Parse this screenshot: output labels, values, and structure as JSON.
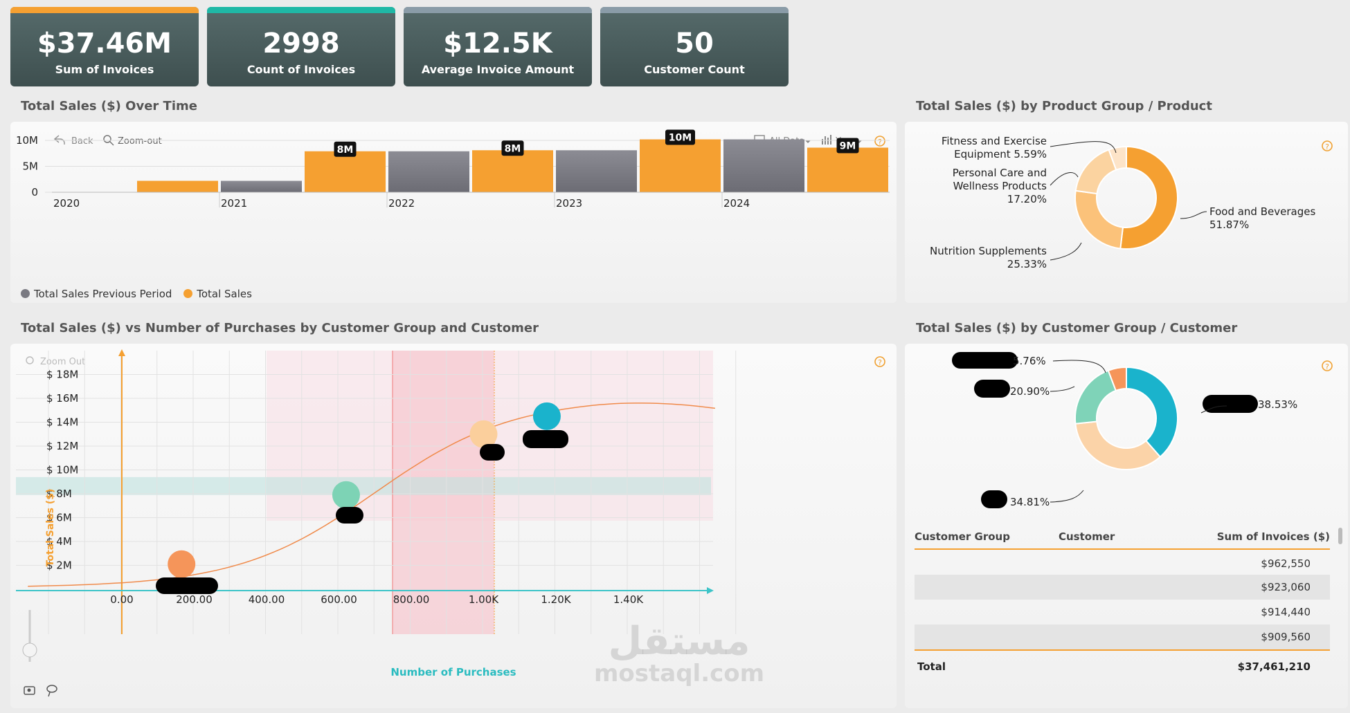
{
  "kpis": [
    {
      "value": "$37.46M",
      "label": "Sum of Invoices",
      "accent": "#f5a031"
    },
    {
      "value": "2998",
      "label": "Count of Invoices",
      "accent": "#1fb8a6"
    },
    {
      "value": "$12.5K",
      "label": "Average Invoice Amount",
      "accent": "#8a9ca8"
    },
    {
      "value": "50",
      "label": "Customer Count",
      "accent": "#8a9ca8"
    }
  ],
  "sales_over_time": {
    "title": "Total Sales ($) Over Time",
    "toolbar": {
      "back": "Back",
      "zoom_out": "Zoom-out",
      "all_data": "All Data",
      "year": "Year"
    },
    "legend": [
      "Total Sales Previous Period",
      "Total Sales"
    ]
  },
  "product_donut": {
    "title": "Total Sales ($) by Product Group / Product",
    "labels": {
      "fitness_1": "Fitness and Exercise",
      "fitness_2": "Equipment 5.59%",
      "personal_1": "Personal Care and",
      "personal_2": "Wellness Products",
      "personal_3": "17.20%",
      "nutrition_1": "Nutrition Supplements",
      "nutrition_2": "25.33%",
      "food_1": "Food and Beverages",
      "food_2": "51.87%"
    }
  },
  "scatter": {
    "title": "Total Sales ($) vs Number of Purchases by Customer Group and Customer",
    "zoom_out": "Zoom Out",
    "xlabel": "Number of Purchases",
    "ylabel": "Total Sales ($)"
  },
  "customer_donut": {
    "title": "Total Sales ($) by Customer Group / Customer",
    "labels": {
      "a": "5.76%",
      "b": "20.90%",
      "c": "38.53%",
      "d": "34.81%"
    }
  },
  "table": {
    "headers": [
      "Customer Group",
      "Customer",
      "Sum of Invoices ($)"
    ],
    "rows": [
      "$962,550",
      "$923,060",
      "$914,440",
      "$909,560"
    ],
    "total_label": "Total",
    "total_value": "$37,461,210"
  },
  "watermark": {
    "ar": "مستقل",
    "en": "mostaql.com"
  },
  "chart_data": [
    {
      "type": "bar",
      "title": "Total Sales ($) Over Time",
      "categories": [
        "2020",
        "2020b",
        "2021",
        "2021b",
        "2022",
        "2022b",
        "2023",
        "2023b",
        "2024",
        "2024b"
      ],
      "series": [
        {
          "name": "Total Sales Previous Period",
          "values": [
            0,
            0,
            2.2,
            0,
            7.9,
            0,
            8.1,
            0,
            10.2,
            0
          ]
        },
        {
          "name": "Total Sales",
          "values": [
            0,
            2.2,
            0,
            7.9,
            0,
            8.1,
            0,
            10.2,
            0,
            8.6
          ]
        }
      ],
      "data_labels": [
        "8M",
        "8M",
        "10M",
        "9M"
      ],
      "ylim": [
        0,
        12
      ],
      "y_ticks": [
        "0",
        "5M",
        "10M"
      ],
      "x_ticks": [
        "2020",
        "2021",
        "2022",
        "2023",
        "2024"
      ]
    },
    {
      "type": "pie",
      "title": "Total Sales ($) by Product Group / Product",
      "labels": [
        "Food and Beverages",
        "Nutrition Supplements",
        "Personal Care and Wellness Products",
        "Fitness and Exercise Equipment"
      ],
      "values": [
        51.87,
        25.33,
        17.2,
        5.59
      ]
    },
    {
      "type": "scatter",
      "title": "Total Sales ($) vs Number of Purchases by Customer Group and Customer",
      "xlabel": "Number of Purchases",
      "ylabel": "Total Sales ($)",
      "x_ticks": [
        "0.00",
        "200.00",
        "400.00",
        "600.00",
        "800.00",
        "1.00K",
        "1.20K",
        "1.40K"
      ],
      "y_ticks": [
        "$ 2M",
        "$ 4M",
        "$ 6M",
        "$ 8M",
        "$ 10M",
        "$ 12M",
        "$ 14M",
        "$ 16M",
        "$ 18M"
      ],
      "points": [
        {
          "x": 165,
          "y": 2.1,
          "color": "#f5955a"
        },
        {
          "x": 620,
          "y": 7.9,
          "color": "#7dd3b5"
        },
        {
          "x": 1000,
          "y": 13.0,
          "color": "#fbcf9c"
        },
        {
          "x": 1175,
          "y": 14.5,
          "color": "#1ab3cc"
        }
      ]
    },
    {
      "type": "pie",
      "title": "Total Sales ($) by Customer Group / Customer",
      "values": [
        38.53,
        34.81,
        20.9,
        5.76
      ]
    }
  ]
}
